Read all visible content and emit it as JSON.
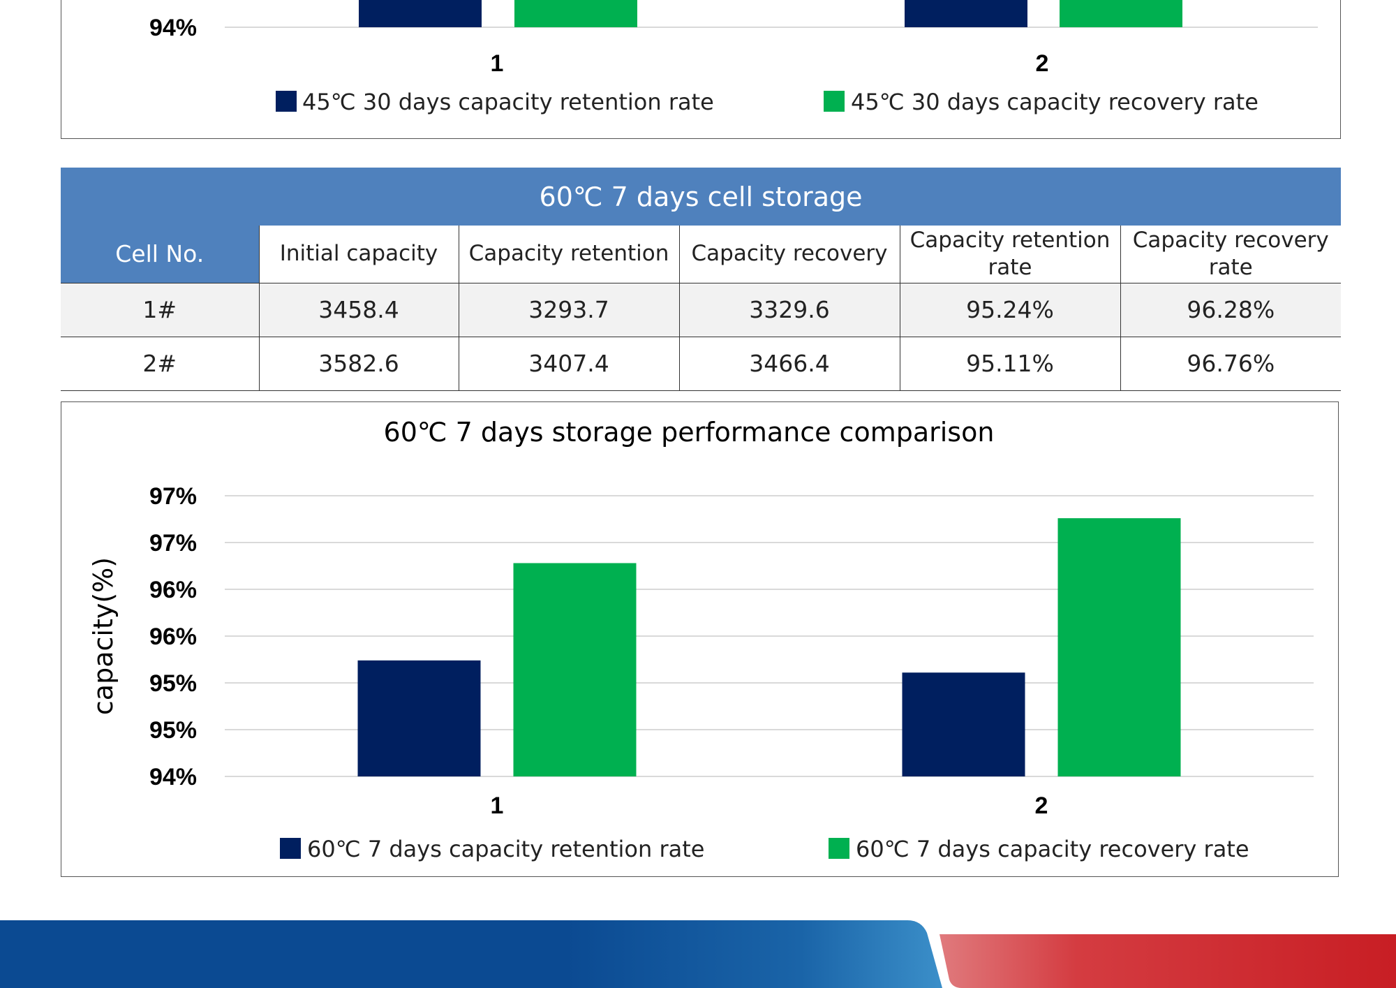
{
  "colors": {
    "retention": "#001f5f",
    "recovery": "#00b050",
    "table_header": "#4f81bd",
    "footer_blue": "#0b4a92",
    "footer_red": "#c81e24"
  },
  "top_chart": {
    "tick_label": "94%",
    "categories": [
      "1",
      "2"
    ],
    "legend": [
      "45℃ 30 days capacity retention rate",
      "45℃ 30 days capacity recovery rate"
    ]
  },
  "table": {
    "title": "60℃ 7 days cell storage",
    "headers": [
      "Cell No.",
      "Initial capacity",
      "Capacity retention",
      "Capacity recovery",
      "Capacity retention rate",
      "Capacity recovery rate"
    ],
    "rows": [
      [
        "1#",
        "3458.4",
        "3293.7",
        "3329.6",
        "95.24%",
        "96.28%"
      ],
      [
        "2#",
        "3582.6",
        "3407.4",
        "3466.4",
        "95.11%",
        "96.76%"
      ]
    ]
  },
  "chart_data": {
    "type": "bar",
    "title": "60℃ 7 days storage performance comparison",
    "ylabel": "capacity(%)",
    "xlabel": "",
    "categories": [
      "1",
      "2"
    ],
    "series": [
      {
        "name": "60℃ 7 days capacity retention rate",
        "values": [
          95.24,
          95.11
        ]
      },
      {
        "name": "60℃ 7 days capacity recovery rate",
        "values": [
          96.28,
          96.76
        ]
      }
    ],
    "ylim": [
      94,
      97
    ],
    "yticks": [
      94,
      94.5,
      95,
      95.5,
      96,
      96.5,
      97
    ],
    "ytick_labels": [
      "94%",
      "95%",
      "95%",
      "96%",
      "96%",
      "97%",
      "97%"
    ],
    "grid": true,
    "legend_position": "bottom"
  }
}
